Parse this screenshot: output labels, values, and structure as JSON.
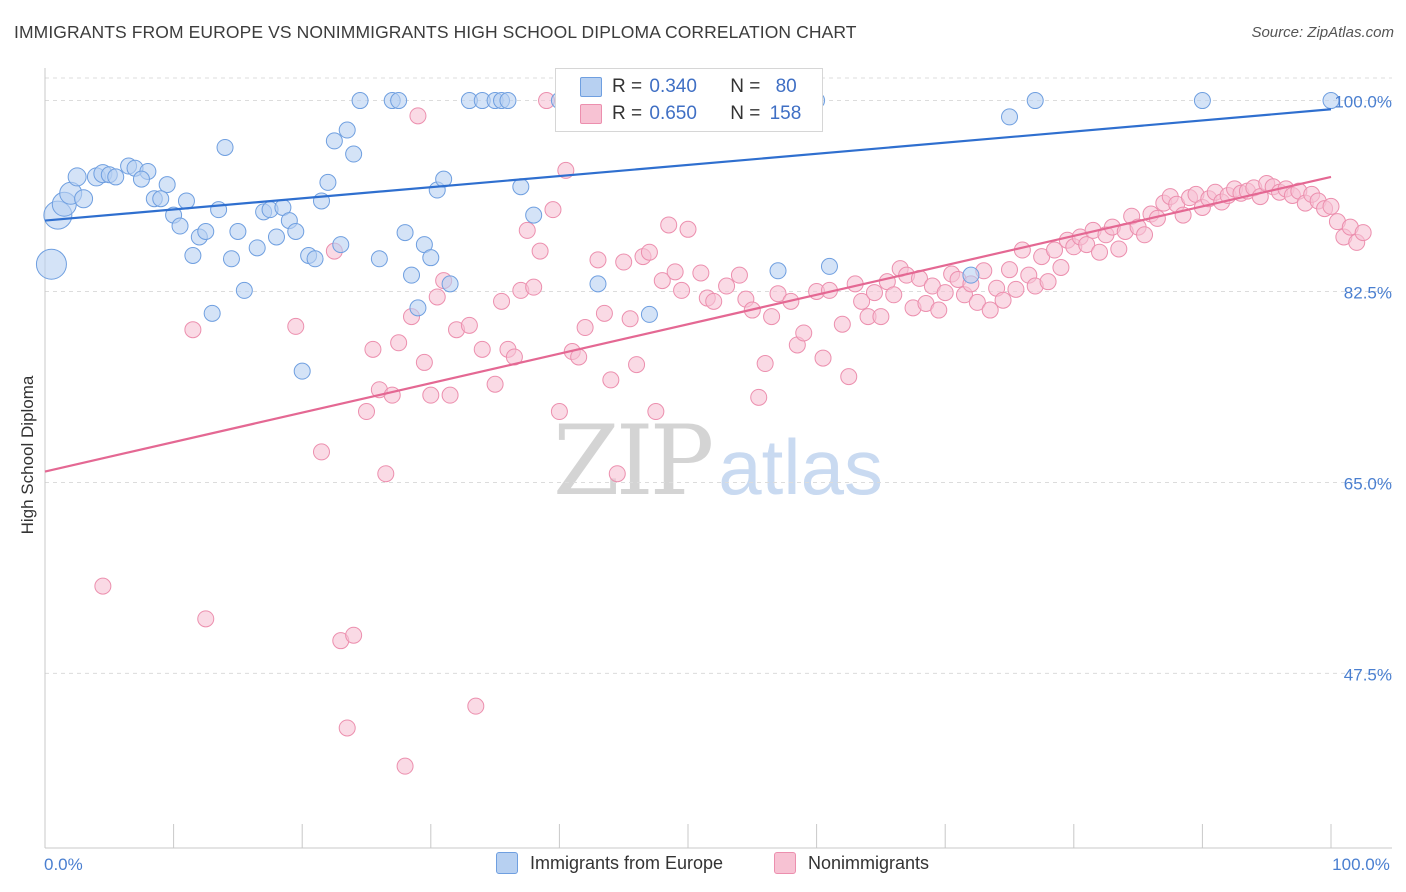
{
  "title": "IMMIGRANTS FROM EUROPE VS NONIMMIGRANTS HIGH SCHOOL DIPLOMA CORRELATION CHART",
  "source": "Source: ZipAtlas.com",
  "watermark": {
    "zip": "ZIP",
    "atlas": "atlas"
  },
  "stats": {
    "blue": {
      "r_label": "R =",
      "r_value": "0.340",
      "n_label": "N =",
      "n_value": "80"
    },
    "pink": {
      "r_label": "R =",
      "r_value": "0.650",
      "n_label": "N =",
      "n_value": "158"
    }
  },
  "legend": {
    "blue": "Immigrants from Europe",
    "pink": "Nonimmigrants"
  },
  "colors": {
    "blue_fill": "#b7d0f1",
    "blue_stroke": "#6f9fe0",
    "blue_line": "#2f6fcf",
    "pink_fill": "#f7c2d3",
    "pink_stroke": "#ec8fae",
    "pink_line": "#e46893",
    "tick_label": "#4a7fd0"
  },
  "chart_data": {
    "type": "scatter",
    "title": "IMMIGRANTS FROM EUROPE VS NONIMMIGRANTS HIGH SCHOOL DIPLOMA CORRELATION CHART",
    "xlabel": "",
    "ylabel": "High School Diploma",
    "xlim": [
      0,
      100
    ],
    "ylim": [
      31.5,
      102.8
    ],
    "x_tick_labels": [
      {
        "value": 0,
        "label": "0.0%"
      },
      {
        "value": 100,
        "label": "100.0%"
      }
    ],
    "y_ticks": [
      {
        "value": 100,
        "label": "100.0%"
      },
      {
        "value": 82.5,
        "label": "82.5%"
      },
      {
        "value": 65,
        "label": "65.0%"
      },
      {
        "value": 47.5,
        "label": "47.5%"
      }
    ],
    "grid": true,
    "legend_position": "bottom-center",
    "series": [
      {
        "name": "Immigrants from Europe",
        "trend": {
          "x": [
            0,
            100
          ],
          "y": [
            89.0,
            99.2
          ]
        },
        "points": [
          [
            0.5,
            85,
            15
          ],
          [
            1,
            89.5,
            14
          ],
          [
            1.5,
            90.5,
            12
          ],
          [
            2,
            91.5,
            11
          ],
          [
            3,
            91,
            9
          ],
          [
            2.5,
            93,
            9
          ],
          [
            4,
            93,
            9
          ],
          [
            4.5,
            93.3,
            9
          ],
          [
            5,
            93.2,
            8
          ],
          [
            5.5,
            93,
            8
          ],
          [
            6.5,
            94,
            8
          ],
          [
            7,
            93.8,
            8
          ],
          [
            8,
            93.5,
            8
          ],
          [
            7.5,
            92.8,
            8
          ],
          [
            9.5,
            92.3,
            8
          ],
          [
            8.5,
            91,
            8
          ],
          [
            9,
            91,
            8
          ],
          [
            11,
            90.8,
            8
          ],
          [
            10,
            89.5,
            8
          ],
          [
            10.5,
            88.5,
            8
          ],
          [
            11.5,
            85.8,
            8
          ],
          [
            12,
            87.5,
            8
          ],
          [
            12.5,
            88,
            8
          ],
          [
            13,
            80.5,
            8
          ],
          [
            13.5,
            90,
            8
          ],
          [
            14,
            95.7,
            8
          ],
          [
            14.5,
            85.5,
            8
          ],
          [
            15,
            88,
            8
          ],
          [
            15.5,
            82.6,
            8
          ],
          [
            16.5,
            86.5,
            8
          ],
          [
            17,
            89.8,
            8
          ],
          [
            17.5,
            90,
            8
          ],
          [
            18,
            87.5,
            8
          ],
          [
            18.5,
            90.2,
            8
          ],
          [
            19,
            89,
            8
          ],
          [
            19.5,
            88,
            8
          ],
          [
            20,
            75.2,
            8
          ],
          [
            20.5,
            85.8,
            8
          ],
          [
            21,
            85.5,
            8
          ],
          [
            21.5,
            90.8,
            8
          ],
          [
            22,
            92.5,
            8
          ],
          [
            22.5,
            96.3,
            8
          ],
          [
            23,
            86.8,
            8
          ],
          [
            23.5,
            97.3,
            8
          ],
          [
            24,
            95.1,
            8
          ],
          [
            24.5,
            100,
            8
          ],
          [
            26,
            85.5,
            8
          ],
          [
            27,
            100,
            8
          ],
          [
            27.5,
            100,
            8
          ],
          [
            28,
            87.9,
            8
          ],
          [
            28.5,
            84,
            8
          ],
          [
            29,
            81,
            8
          ],
          [
            29.5,
            86.8,
            8
          ],
          [
            30,
            85.6,
            8
          ],
          [
            30.5,
            91.8,
            8
          ],
          [
            31,
            92.8,
            8
          ],
          [
            31.5,
            83.2,
            8
          ],
          [
            33,
            100,
            8
          ],
          [
            34,
            100,
            8
          ],
          [
            35,
            100,
            8
          ],
          [
            35.5,
            100,
            8
          ],
          [
            36,
            100,
            8
          ],
          [
            37,
            92.1,
            8
          ],
          [
            38,
            89.5,
            8
          ],
          [
            40,
            100,
            8
          ],
          [
            40.5,
            100,
            8
          ],
          [
            41,
            100,
            8
          ],
          [
            42,
            100,
            8
          ],
          [
            43,
            83.2,
            8
          ],
          [
            47,
            80.4,
            8
          ],
          [
            50,
            100,
            8
          ],
          [
            53,
            100,
            8
          ],
          [
            55,
            100,
            8
          ],
          [
            57,
            84.4,
            8
          ],
          [
            60,
            100,
            8
          ],
          [
            61,
            84.8,
            8
          ],
          [
            72,
            84,
            8
          ],
          [
            75,
            98.5,
            8
          ],
          [
            77,
            100,
            8
          ],
          [
            90,
            100,
            8
          ],
          [
            100,
            100,
            8
          ]
        ]
      },
      {
        "name": "Nonimmigrants",
        "trend": {
          "x": [
            0,
            100
          ],
          "y": [
            66.0,
            93.0
          ]
        },
        "points": [
          [
            4.5,
            55.5,
            8
          ],
          [
            11.5,
            79,
            8
          ],
          [
            12.5,
            52.5,
            8
          ],
          [
            19.5,
            79.3,
            8
          ],
          [
            21.5,
            67.8,
            8
          ],
          [
            22.5,
            86.2,
            8
          ],
          [
            23,
            50.5,
            8
          ],
          [
            23.5,
            42.5,
            8
          ],
          [
            24,
            51,
            8
          ],
          [
            25,
            71.5,
            8
          ],
          [
            25.5,
            77.2,
            8
          ],
          [
            26,
            73.5,
            8
          ],
          [
            26.5,
            65.8,
            8
          ],
          [
            27,
            73,
            8
          ],
          [
            27.5,
            77.8,
            8
          ],
          [
            28,
            39,
            8
          ],
          [
            28.5,
            80.2,
            8
          ],
          [
            29,
            98.6,
            8
          ],
          [
            29.5,
            76,
            8
          ],
          [
            30,
            73,
            8
          ],
          [
            30.5,
            82,
            8
          ],
          [
            31,
            83.5,
            8
          ],
          [
            31.5,
            73,
            8
          ],
          [
            32,
            79,
            8
          ],
          [
            33,
            79.4,
            8
          ],
          [
            33.5,
            44.5,
            8
          ],
          [
            34,
            77.2,
            8
          ],
          [
            35,
            74,
            8
          ],
          [
            35.5,
            81.6,
            8
          ],
          [
            36,
            77.2,
            8
          ],
          [
            36.5,
            76.5,
            8
          ],
          [
            37,
            82.6,
            8
          ],
          [
            37.5,
            88.1,
            8
          ],
          [
            38,
            82.9,
            8
          ],
          [
            38.5,
            86.2,
            8
          ],
          [
            39,
            100,
            8
          ],
          [
            39.5,
            90,
            8
          ],
          [
            40,
            71.5,
            8
          ],
          [
            40.5,
            93.6,
            8
          ],
          [
            41,
            77,
            8
          ],
          [
            41.5,
            76.5,
            8
          ],
          [
            42,
            79.2,
            8
          ],
          [
            43,
            85.4,
            8
          ],
          [
            43.5,
            80.5,
            8
          ],
          [
            44,
            74.4,
            8
          ],
          [
            44.5,
            65.8,
            8
          ],
          [
            45,
            85.2,
            8
          ],
          [
            45.5,
            80,
            8
          ],
          [
            46,
            75.8,
            8
          ],
          [
            46.5,
            85.7,
            8
          ],
          [
            47,
            86.1,
            8
          ],
          [
            47.5,
            71.5,
            8
          ],
          [
            48,
            83.5,
            8
          ],
          [
            48.5,
            88.6,
            8
          ],
          [
            49,
            84.3,
            8
          ],
          [
            49.5,
            82.6,
            8
          ],
          [
            50,
            88.2,
            8
          ],
          [
            51,
            84.2,
            8
          ],
          [
            51.5,
            81.9,
            8
          ],
          [
            52,
            81.6,
            8
          ],
          [
            53,
            83,
            8
          ],
          [
            54,
            84,
            8
          ],
          [
            54.5,
            81.8,
            8
          ],
          [
            55,
            80.8,
            8
          ],
          [
            55.5,
            72.8,
            8
          ],
          [
            56,
            75.9,
            8
          ],
          [
            56.5,
            80.2,
            8
          ],
          [
            57,
            82.3,
            8
          ],
          [
            58,
            81.6,
            8
          ],
          [
            58.5,
            77.6,
            8
          ],
          [
            59,
            78.7,
            8
          ],
          [
            60,
            82.5,
            8
          ],
          [
            60.5,
            76.4,
            8
          ],
          [
            61,
            82.6,
            8
          ],
          [
            62,
            79.5,
            8
          ],
          [
            62.5,
            74.7,
            8
          ],
          [
            63,
            83.2,
            8
          ],
          [
            63.5,
            81.6,
            8
          ],
          [
            64,
            80.2,
            8
          ],
          [
            64.5,
            82.4,
            8
          ],
          [
            65,
            80.2,
            8
          ],
          [
            65.5,
            83.4,
            8
          ],
          [
            66,
            82.2,
            8
          ],
          [
            66.5,
            84.6,
            8
          ],
          [
            67,
            84,
            8
          ],
          [
            67.5,
            81,
            8
          ],
          [
            68,
            83.7,
            8
          ],
          [
            68.5,
            81.4,
            8
          ],
          [
            69,
            83,
            8
          ],
          [
            69.5,
            80.8,
            8
          ],
          [
            70,
            82.4,
            8
          ],
          [
            70.5,
            84.1,
            8
          ],
          [
            71,
            83.6,
            8
          ],
          [
            71.5,
            82.2,
            8
          ],
          [
            72,
            83.2,
            8
          ],
          [
            72.5,
            81.5,
            8
          ],
          [
            73,
            84.4,
            8
          ],
          [
            73.5,
            80.8,
            8
          ],
          [
            74,
            82.8,
            8
          ],
          [
            74.5,
            81.7,
            8
          ],
          [
            75,
            84.5,
            8
          ],
          [
            75.5,
            82.7,
            8
          ],
          [
            76,
            86.3,
            8
          ],
          [
            76.5,
            84,
            8
          ],
          [
            77,
            83,
            8
          ],
          [
            77.5,
            85.7,
            8
          ],
          [
            78,
            83.4,
            8
          ],
          [
            78.5,
            86.3,
            8
          ],
          [
            79,
            84.7,
            8
          ],
          [
            79.5,
            87.2,
            8
          ],
          [
            80,
            86.6,
            8
          ],
          [
            80.5,
            87.5,
            8
          ],
          [
            81,
            86.8,
            8
          ],
          [
            81.5,
            88.1,
            8
          ],
          [
            82,
            86.1,
            8
          ],
          [
            82.5,
            87.7,
            8
          ],
          [
            83,
            88.4,
            8
          ],
          [
            83.5,
            86.4,
            8
          ],
          [
            84,
            88,
            8
          ],
          [
            84.5,
            89.4,
            8
          ],
          [
            85,
            88.4,
            8
          ],
          [
            85.5,
            87.7,
            8
          ],
          [
            86,
            89.6,
            8
          ],
          [
            86.5,
            89.2,
            8
          ],
          [
            87,
            90.6,
            8
          ],
          [
            87.5,
            91.2,
            8
          ],
          [
            88,
            90.5,
            8
          ],
          [
            88.5,
            89.5,
            8
          ],
          [
            89,
            91.1,
            8
          ],
          [
            89.5,
            91.4,
            8
          ],
          [
            90,
            90.2,
            8
          ],
          [
            90.5,
            91,
            8
          ],
          [
            91,
            91.6,
            8
          ],
          [
            91.5,
            90.7,
            8
          ],
          [
            92,
            91.3,
            8
          ],
          [
            92.5,
            91.9,
            8
          ],
          [
            93,
            91.5,
            8
          ],
          [
            93.5,
            91.7,
            8
          ],
          [
            94,
            92,
            8
          ],
          [
            94.5,
            91.2,
            8
          ],
          [
            95,
            92.4,
            8
          ],
          [
            95.5,
            92.1,
            8
          ],
          [
            96,
            91.6,
            8
          ],
          [
            96.5,
            91.9,
            8
          ],
          [
            97,
            91.3,
            8
          ],
          [
            97.5,
            91.7,
            8
          ],
          [
            98,
            90.6,
            8
          ],
          [
            98.5,
            91.4,
            8
          ],
          [
            99,
            90.8,
            8
          ],
          [
            99.5,
            90.1,
            8
          ],
          [
            100,
            90.3,
            8
          ],
          [
            100.5,
            88.9,
            8
          ],
          [
            101,
            87.5,
            8
          ],
          [
            101.5,
            88.4,
            8
          ],
          [
            102,
            87,
            8
          ],
          [
            102.5,
            87.9,
            8
          ]
        ]
      }
    ]
  }
}
